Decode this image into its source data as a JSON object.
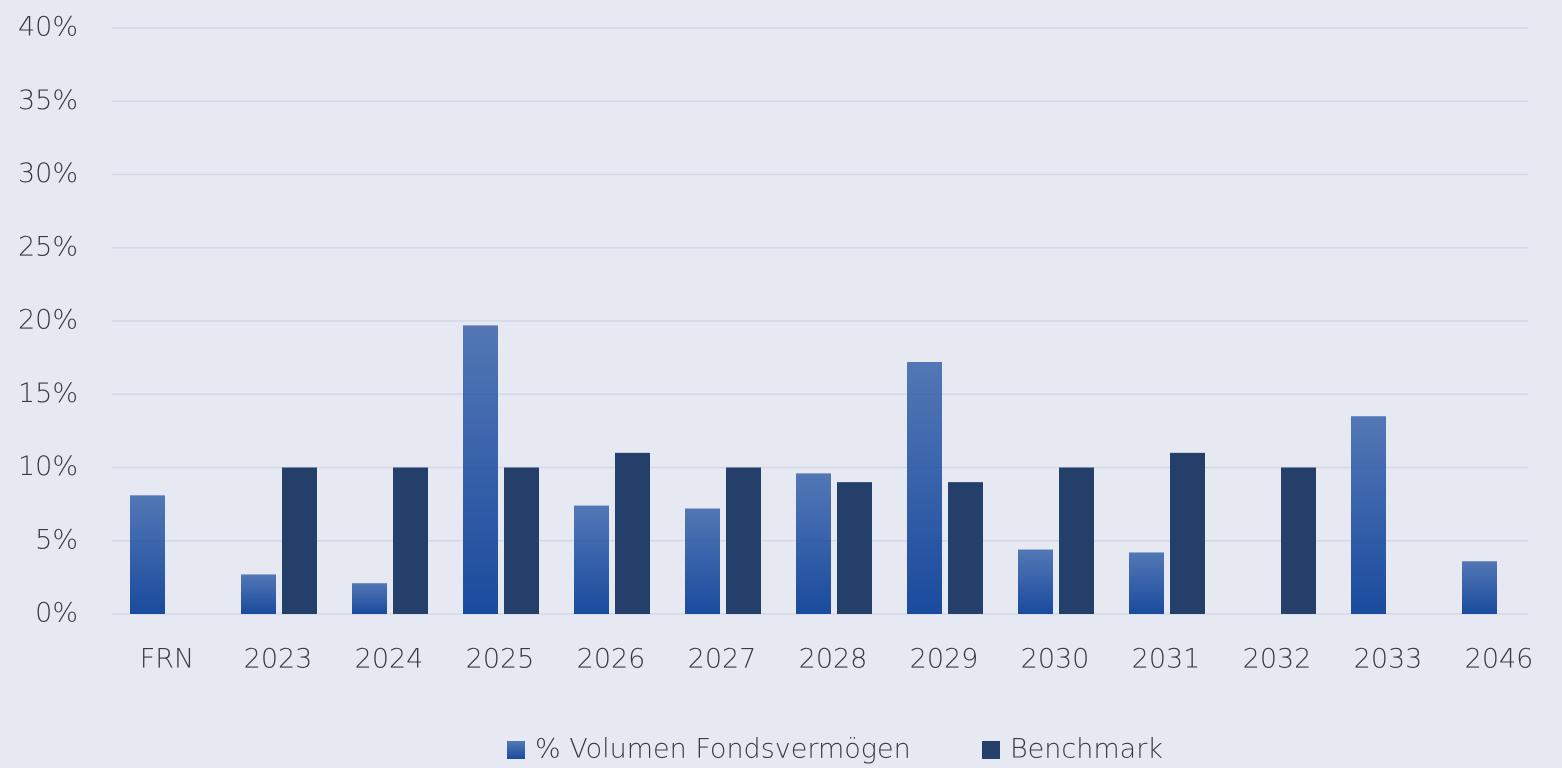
{
  "chart_data": {
    "type": "bar",
    "categories": [
      "FRN",
      "2023",
      "2024",
      "2025",
      "2026",
      "2027",
      "2028",
      "2029",
      "2030",
      "2031",
      "2032",
      "2033",
      "2046"
    ],
    "series": [
      {
        "name": "% Volumen Fondsvermögen",
        "color": "#1a4b9e",
        "values": [
          8.1,
          2.7,
          2.1,
          19.7,
          7.4,
          7.2,
          9.6,
          17.2,
          4.4,
          4.2,
          null,
          13.5,
          3.6
        ]
      },
      {
        "name": "Benchmark",
        "color": "#233f6a",
        "values": [
          null,
          10,
          10,
          10,
          11,
          10,
          9,
          9,
          10,
          11,
          10,
          null,
          null
        ]
      }
    ],
    "ylim": [
      0,
      40
    ],
    "yticks": [
      {
        "value": 0,
        "label": "0%"
      },
      {
        "value": 5,
        "label": "5%"
      },
      {
        "value": 10,
        "label": "10%"
      },
      {
        "value": 15,
        "label": "15%"
      },
      {
        "value": 20,
        "label": "20%"
      },
      {
        "value": 25,
        "label": "25%"
      },
      {
        "value": 30,
        "label": "30%"
      },
      {
        "value": 35,
        "label": "35%"
      },
      {
        "value": 40,
        "label": "40%"
      }
    ],
    "grid": true,
    "legend": "bottom"
  }
}
